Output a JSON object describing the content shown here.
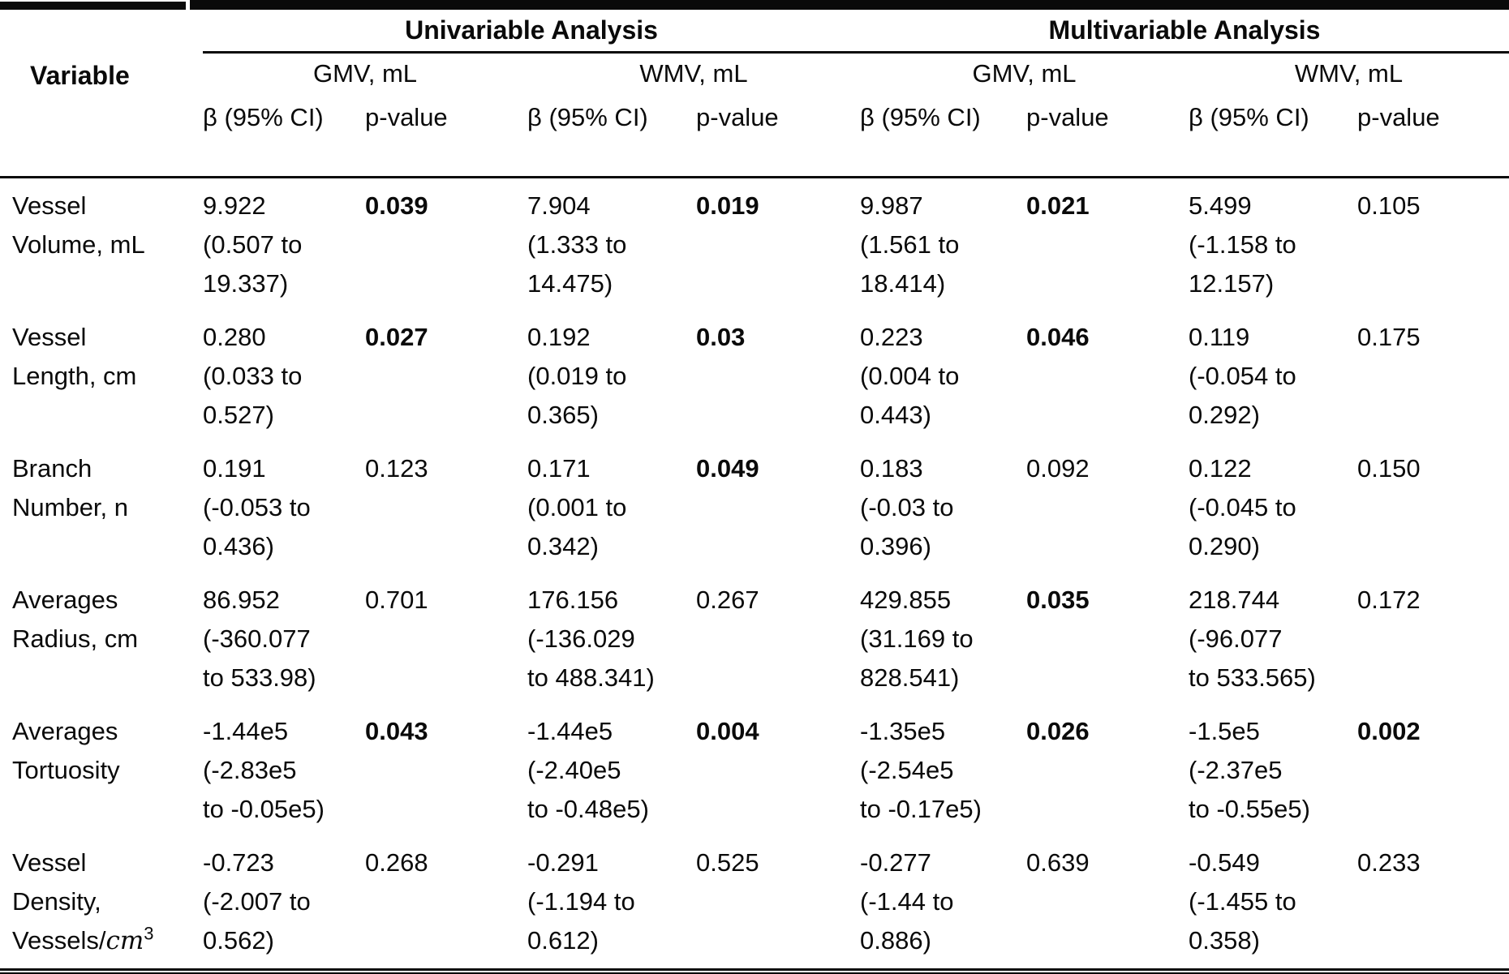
{
  "table": {
    "header": {
      "variable_label": "Variable",
      "groups": [
        {
          "label": "Univariable Analysis"
        },
        {
          "label": "Multivariable Analysis"
        }
      ],
      "subgroups": [
        "GMV, mL",
        "WMV, mL",
        "GMV, mL",
        "WMV, mL"
      ],
      "beta_label": "β (95% CI)",
      "p_label": "p-value"
    },
    "rows": [
      {
        "variable": [
          "Vessel",
          "Volume, mL"
        ],
        "cells": [
          {
            "beta": [
              "9.922",
              "(0.507 to",
              "19.337)"
            ],
            "p": "0.039",
            "p_bold": true
          },
          {
            "beta": [
              "7.904",
              "(1.333 to",
              "14.475)"
            ],
            "p": "0.019",
            "p_bold": true
          },
          {
            "beta": [
              "9.987",
              "(1.561 to",
              "18.414)"
            ],
            "p": "0.021",
            "p_bold": true
          },
          {
            "beta": [
              "5.499",
              "(-1.158 to",
              "12.157)"
            ],
            "p": "0.105",
            "p_bold": false
          }
        ]
      },
      {
        "variable": [
          "Vessel",
          "Length, cm"
        ],
        "cells": [
          {
            "beta": [
              "0.280",
              "(0.033 to",
              "0.527)"
            ],
            "p": "0.027",
            "p_bold": true
          },
          {
            "beta": [
              "0.192",
              "(0.019 to",
              "0.365)"
            ],
            "p": "0.03",
            "p_bold": true
          },
          {
            "beta": [
              "0.223",
              "(0.004 to",
              "0.443)"
            ],
            "p": "0.046",
            "p_bold": true
          },
          {
            "beta": [
              "0.119",
              "(-0.054 to",
              "0.292)"
            ],
            "p": "0.175",
            "p_bold": false
          }
        ]
      },
      {
        "variable": [
          "Branch",
          "Number, n"
        ],
        "cells": [
          {
            "beta": [
              "0.191",
              "(-0.053 to",
              "0.436)"
            ],
            "p": "0.123",
            "p_bold": false
          },
          {
            "beta": [
              "0.171",
              "(0.001 to",
              "0.342)"
            ],
            "p": "0.049",
            "p_bold": true
          },
          {
            "beta": [
              "0.183",
              "(-0.03 to",
              "0.396)"
            ],
            "p": "0.092",
            "p_bold": false
          },
          {
            "beta": [
              "0.122",
              "(-0.045 to",
              "0.290)"
            ],
            "p": "0.150",
            "p_bold": false
          }
        ]
      },
      {
        "variable": [
          "Averages",
          "Radius, cm"
        ],
        "cells": [
          {
            "beta": [
              "86.952",
              "(-360.077",
              "to 533.98)"
            ],
            "p": "0.701",
            "p_bold": false
          },
          {
            "beta": [
              "176.156",
              "(-136.029",
              "to 488.341)"
            ],
            "p": "0.267",
            "p_bold": false
          },
          {
            "beta": [
              "429.855",
              "(31.169 to",
              "828.541)"
            ],
            "p": "0.035",
            "p_bold": true
          },
          {
            "beta": [
              "218.744",
              "(-96.077",
              "to 533.565)"
            ],
            "p": "0.172",
            "p_bold": false
          }
        ]
      },
      {
        "variable": [
          "Averages",
          "Tortuosity"
        ],
        "cells": [
          {
            "beta": [
              "-1.44e5",
              "(-2.83e5",
              "to -0.05e5)"
            ],
            "p": "0.043",
            "p_bold": true
          },
          {
            "beta": [
              "-1.44e5",
              "(-2.40e5",
              "to -0.48e5)"
            ],
            "p": "0.004",
            "p_bold": true
          },
          {
            "beta": [
              "-1.35e5",
              "(-2.54e5",
              "to -0.17e5)"
            ],
            "p": "0.026",
            "p_bold": true
          },
          {
            "beta": [
              "-1.5e5",
              "(-2.37e5",
              "to -0.55e5)"
            ],
            "p": "0.002",
            "p_bold": true
          }
        ]
      },
      {
        "variable": [
          "Vessel",
          "Density,",
          [
            {
              "text": "Vessels/"
            },
            {
              "text": "cm",
              "italic": true
            },
            {
              "text": "3",
              "sup": true
            }
          ]
        ],
        "cells": [
          {
            "beta": [
              "-0.723",
              "(-2.007 to",
              "0.562)"
            ],
            "p": "0.268",
            "p_bold": false
          },
          {
            "beta": [
              "-0.291",
              "(-1.194 to",
              "0.612)"
            ],
            "p": "0.525",
            "p_bold": false
          },
          {
            "beta": [
              "-0.277",
              "(-1.44 to",
              "0.886)"
            ],
            "p": "0.639",
            "p_bold": false
          },
          {
            "beta": [
              "-0.549",
              "(-1.455 to",
              "0.358)"
            ],
            "p": "0.233",
            "p_bold": false
          }
        ]
      }
    ]
  }
}
